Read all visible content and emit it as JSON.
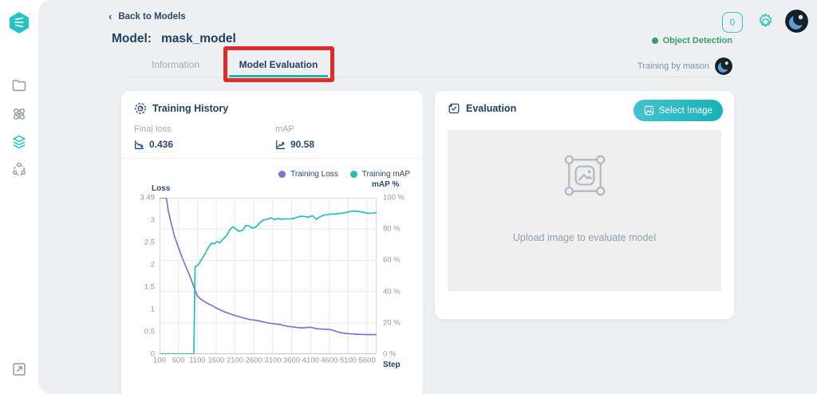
{
  "colors": {
    "accent_teal": "#1fbfbf",
    "loss_purple": "#8172d8",
    "map_teal": "#2bbdb5",
    "navy_text": "#1d4066",
    "annotation_red": "#dd2c2c",
    "type_green": "#35a06a"
  },
  "sidebar": {
    "icons": [
      "app-logo",
      "projects-folder",
      "datasets",
      "models",
      "deployments",
      "open-external"
    ]
  },
  "header": {
    "back_label": "Back to Models",
    "title_label": "Model:",
    "model_name": "mask_model",
    "notification_count": "0",
    "model_type": "Object Detection"
  },
  "tabs": {
    "information": "Information",
    "model_evaluation": "Model Evaluation",
    "training_by": "Training by mason"
  },
  "training_history": {
    "title": "Training History",
    "final_loss_label": "Final loss",
    "final_loss_value": "0.436",
    "map_label": "mAP",
    "map_value": "90.58"
  },
  "evaluation": {
    "title": "Evaluation",
    "select_button": "Select Image",
    "upload_hint": "Upload image to evaluate model"
  },
  "chart_data": {
    "type": "line",
    "xlabel": "Step",
    "ylabel_left": "Loss",
    "ylabel_right": "mAP %",
    "x_range": [
      100,
      5850
    ],
    "x_ticks": [
      100,
      600,
      1100,
      1600,
      2100,
      2600,
      3100,
      3600,
      4100,
      4600,
      5100,
      5600
    ],
    "left_range": [
      0,
      3.49
    ],
    "left_ticks": [
      "3.49",
      "3",
      "2.5",
      "2",
      "1.5",
      "1",
      "0.5",
      "0"
    ],
    "left_tick_values": [
      3.49,
      3,
      2.5,
      2,
      1.5,
      1,
      0.5,
      0
    ],
    "right_range": [
      0,
      100
    ],
    "right_ticks": [
      "100 %",
      "80 %",
      "60 %",
      "40 %",
      "20 %",
      "0 %"
    ],
    "right_tick_values": [
      100,
      80,
      60,
      40,
      20,
      0
    ],
    "grid": true,
    "legend_position": "top-right",
    "legend": [
      {
        "name": "Training Loss",
        "color": "#8172d8"
      },
      {
        "name": "Training mAP",
        "color": "#2bbdb5"
      }
    ],
    "series": [
      {
        "name": "Training Loss",
        "axis": "left",
        "color": "#8172d8",
        "points": [
          [
            100,
            3.49
          ],
          [
            230,
            3.49
          ],
          [
            280,
            3.49
          ],
          [
            330,
            3.2
          ],
          [
            400,
            2.95
          ],
          [
            500,
            2.62
          ],
          [
            600,
            2.38
          ],
          [
            700,
            2.15
          ],
          [
            800,
            1.95
          ],
          [
            900,
            1.75
          ],
          [
            1000,
            1.52
          ],
          [
            1100,
            1.3
          ],
          [
            1200,
            1.22
          ],
          [
            1300,
            1.17
          ],
          [
            1400,
            1.12
          ],
          [
            1500,
            1.08
          ],
          [
            1600,
            1.03
          ],
          [
            1700,
            0.99
          ],
          [
            1800,
            0.95
          ],
          [
            1900,
            0.92
          ],
          [
            2000,
            0.89
          ],
          [
            2100,
            0.86
          ],
          [
            2200,
            0.84
          ],
          [
            2300,
            0.81
          ],
          [
            2400,
            0.79
          ],
          [
            2500,
            0.77
          ],
          [
            2600,
            0.76
          ],
          [
            2700,
            0.75
          ],
          [
            2800,
            0.73
          ],
          [
            2900,
            0.71
          ],
          [
            3000,
            0.69
          ],
          [
            3100,
            0.68
          ],
          [
            3200,
            0.67
          ],
          [
            3300,
            0.66
          ],
          [
            3400,
            0.64
          ],
          [
            3500,
            0.62
          ],
          [
            3600,
            0.61
          ],
          [
            3700,
            0.6
          ],
          [
            3800,
            0.59
          ],
          [
            3900,
            0.585
          ],
          [
            4000,
            0.595
          ],
          [
            4100,
            0.6
          ],
          [
            4200,
            0.58
          ],
          [
            4300,
            0.565
          ],
          [
            4400,
            0.56
          ],
          [
            4500,
            0.555
          ],
          [
            4600,
            0.55
          ],
          [
            4700,
            0.53
          ],
          [
            4800,
            0.5
          ],
          [
            4900,
            0.48
          ],
          [
            5000,
            0.465
          ],
          [
            5100,
            0.455
          ],
          [
            5200,
            0.45
          ],
          [
            5300,
            0.445
          ],
          [
            5400,
            0.44
          ],
          [
            5500,
            0.44
          ],
          [
            5600,
            0.435
          ],
          [
            5700,
            0.436
          ],
          [
            5850,
            0.436
          ]
        ]
      },
      {
        "name": "Training mAP",
        "axis": "right",
        "color": "#2bbdb5",
        "points": [
          [
            100,
            0
          ],
          [
            980,
            0
          ],
          [
            1010,
            0.5
          ],
          [
            1040,
            56
          ],
          [
            1120,
            57
          ],
          [
            1200,
            60
          ],
          [
            1300,
            64
          ],
          [
            1400,
            68.5
          ],
          [
            1480,
            71
          ],
          [
            1550,
            70.5
          ],
          [
            1620,
            72
          ],
          [
            1700,
            71.2
          ],
          [
            1780,
            73.5
          ],
          [
            1880,
            76
          ],
          [
            1960,
            79.5
          ],
          [
            2040,
            81.5
          ],
          [
            2120,
            80
          ],
          [
            2200,
            78.6
          ],
          [
            2300,
            79.2
          ],
          [
            2380,
            82.3
          ],
          [
            2460,
            82
          ],
          [
            2550,
            80.6
          ],
          [
            2650,
            81.2
          ],
          [
            2750,
            84
          ],
          [
            2850,
            85.8
          ],
          [
            2950,
            86.2
          ],
          [
            3050,
            87.2
          ],
          [
            3150,
            86
          ],
          [
            3250,
            86.8
          ],
          [
            3350,
            86.2
          ],
          [
            3450,
            86.6
          ],
          [
            3550,
            86.5
          ],
          [
            3650,
            86.8
          ],
          [
            3750,
            87.6
          ],
          [
            3850,
            88.2
          ],
          [
            3950,
            88
          ],
          [
            4050,
            87.6
          ],
          [
            4150,
            88.6
          ],
          [
            4250,
            86.2
          ],
          [
            4350,
            87.8
          ],
          [
            4450,
            89
          ],
          [
            4550,
            89.2
          ],
          [
            4650,
            89.6
          ],
          [
            4750,
            89.6
          ],
          [
            4850,
            90
          ],
          [
            4950,
            90.2
          ],
          [
            5050,
            90.6
          ],
          [
            5150,
            91.2
          ],
          [
            5250,
            91.6
          ],
          [
            5350,
            91.4
          ],
          [
            5450,
            91
          ],
          [
            5550,
            90.4
          ],
          [
            5650,
            90.1
          ],
          [
            5750,
            90.2
          ],
          [
            5850,
            90.58
          ]
        ]
      }
    ]
  }
}
